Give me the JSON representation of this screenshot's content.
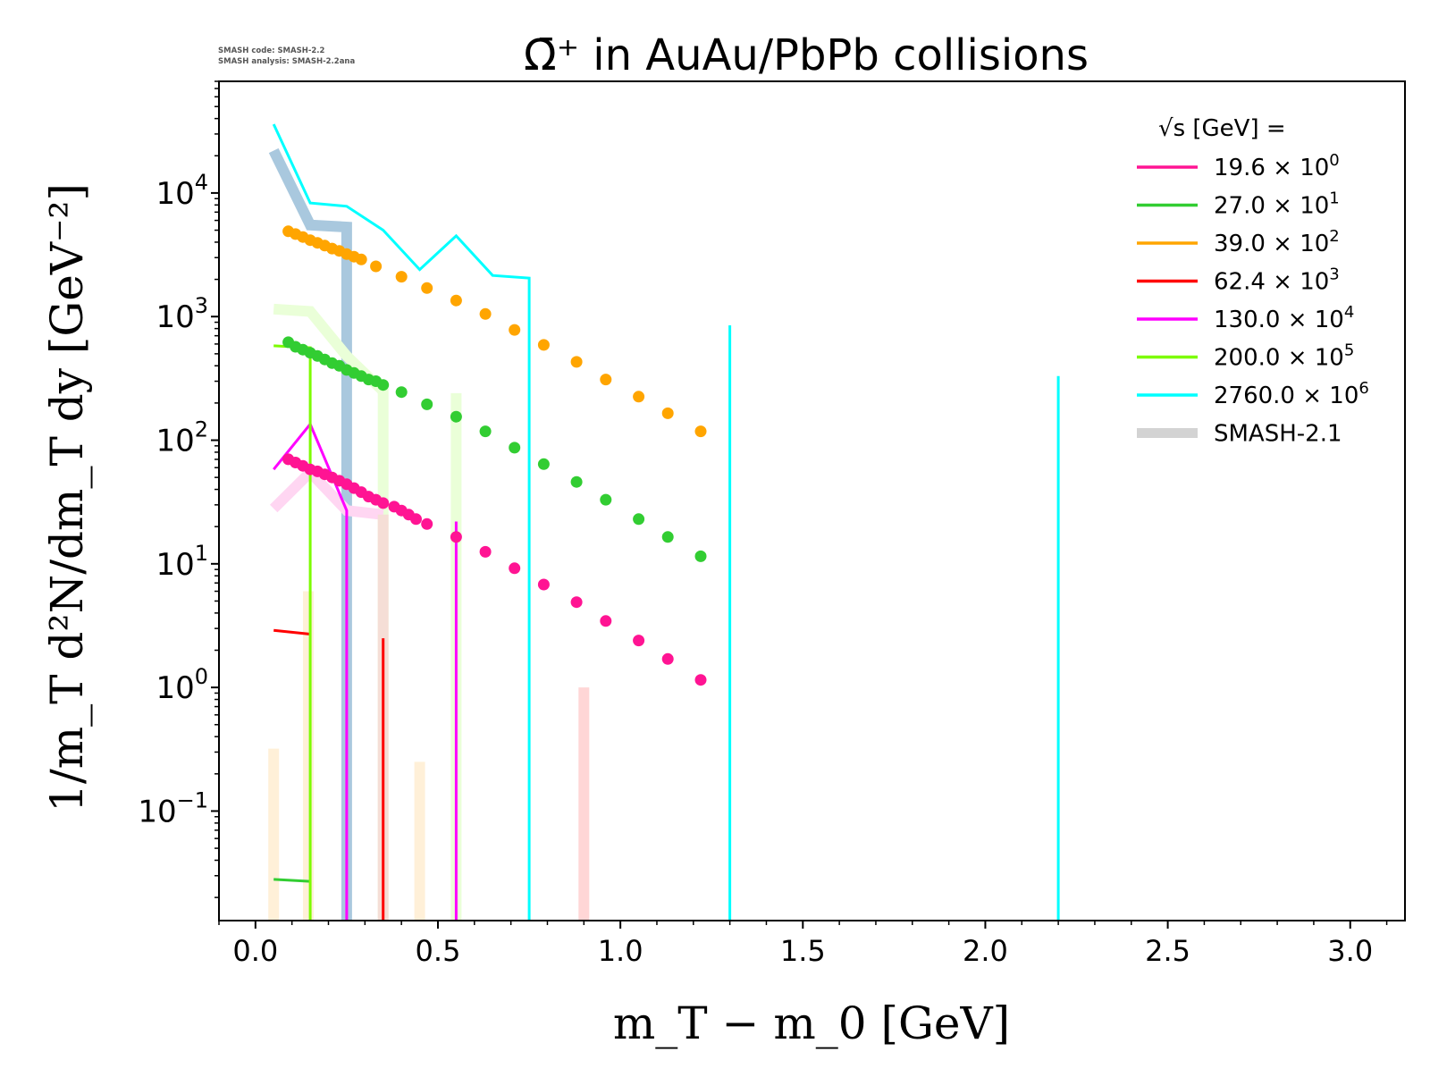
{
  "stamp": {
    "line1": "SMASH code:      SMASH-2.2",
    "line2": "SMASH analysis: SMASH-2.2ana"
  },
  "chart_data": {
    "type": "line",
    "title": "Ω̄⁺ in AuAu/PbPb collisions",
    "xlabel": "m_T − m_0 [GeV]",
    "ylabel": "1/m_T d²N/dm_T dy [GeV⁻²]",
    "xlim": [
      -0.1,
      3.15
    ],
    "ylim": [
      0.013,
      80000
    ],
    "yscale": "log",
    "grid": false,
    "legend_placement": "top-right",
    "legend_title": "√s  [GeV] =",
    "x_ticks": [
      "0.0",
      "0.5",
      "1.0",
      "1.5",
      "2.0",
      "2.5",
      "3.0"
    ],
    "y_ticks": [
      {
        "value": 0.1,
        "base": "10",
        "exp": "−1"
      },
      {
        "value": 1,
        "base": "10",
        "exp": "0"
      },
      {
        "value": 10,
        "base": "10",
        "exp": "1"
      },
      {
        "value": 100,
        "base": "10",
        "exp": "2"
      },
      {
        "value": 1000,
        "base": "10",
        "exp": "3"
      },
      {
        "value": 10000,
        "base": "10",
        "exp": "4"
      }
    ],
    "series": [
      {
        "name": "19.6 × 10⁰",
        "legend_base": "19.6 × 10",
        "legend_exp": "0",
        "color": "#ff1493",
        "points": {
          "x": [
            0.09,
            0.11,
            0.13,
            0.15,
            0.17,
            0.19,
            0.21,
            0.23,
            0.25,
            0.27,
            0.29,
            0.31,
            0.33,
            0.35,
            0.38,
            0.4,
            0.42,
            0.44,
            0.47,
            0.55,
            0.63,
            0.71,
            0.79,
            0.88,
            0.96,
            1.05,
            1.13,
            1.22
          ],
          "y": [
            70,
            66,
            62,
            58,
            56,
            53,
            50,
            47,
            44,
            41,
            38,
            35,
            33,
            31,
            29,
            27,
            25,
            23,
            21,
            16.5,
            12.5,
            9.2,
            6.8,
            4.9,
            3.45,
            2.4,
            1.7,
            1.15
          ]
        },
        "lines": []
      },
      {
        "name": "27.0 × 10¹",
        "legend_base": "27.0 × 10",
        "legend_exp": "1",
        "color": "#32cd32",
        "points": {
          "x": [
            0.09,
            0.11,
            0.13,
            0.15,
            0.17,
            0.19,
            0.21,
            0.23,
            0.25,
            0.27,
            0.29,
            0.31,
            0.33,
            0.35,
            0.4,
            0.47,
            0.55,
            0.63,
            0.71,
            0.79,
            0.88,
            0.96,
            1.05,
            1.13,
            1.22
          ],
          "y": [
            620,
            570,
            540,
            510,
            480,
            450,
            420,
            400,
            370,
            350,
            330,
            310,
            300,
            280,
            245,
            195,
            155,
            118,
            87,
            64,
            46,
            33,
            23,
            16.5,
            11.5
          ]
        },
        "lines": [
          {
            "x": [
              0.05,
              0.15
            ],
            "y": [
              0.028,
              0.027
            ]
          }
        ]
      },
      {
        "name": "39.0 × 10²",
        "legend_base": "39.0 × 10",
        "legend_exp": "2",
        "color": "#ffa500",
        "points": {
          "x": [
            0.09,
            0.11,
            0.13,
            0.15,
            0.17,
            0.19,
            0.21,
            0.23,
            0.25,
            0.27,
            0.29,
            0.33,
            0.4,
            0.47,
            0.55,
            0.63,
            0.71,
            0.79,
            0.88,
            0.96,
            1.05,
            1.13,
            1.22
          ],
          "y": [
            4900,
            4650,
            4400,
            4150,
            3950,
            3750,
            3550,
            3400,
            3200,
            3050,
            2900,
            2550,
            2100,
            1700,
            1350,
            1050,
            780,
            590,
            430,
            310,
            225,
            165,
            118
          ]
        },
        "lines": []
      },
      {
        "name": "62.4 × 10³",
        "legend_base": "62.4 × 10",
        "legend_exp": "3",
        "color": "#ff0000",
        "points": {
          "x": [],
          "y": []
        },
        "lines": [
          {
            "x": [
              0.05,
              0.15
            ],
            "y": [
              2.9,
              2.7
            ]
          },
          {
            "x": [
              0.35,
              0.35
            ],
            "y": [
              2.5,
              0.013
            ]
          }
        ]
      },
      {
        "name": "130.0 × 10⁴",
        "legend_base": "130.0 × 10",
        "legend_exp": "4",
        "color": "#ff00ff",
        "points": {
          "x": [],
          "y": []
        },
        "lines": [
          {
            "x": [
              0.05,
              0.15,
              0.25,
              0.25
            ],
            "y": [
              58,
              135,
              27,
              0.013
            ]
          },
          {
            "x": [
              0.55,
              0.55
            ],
            "y": [
              22,
              0.013
            ]
          }
        ]
      },
      {
        "name": "200.0 × 10⁵",
        "legend_base": "200.0 × 10",
        "legend_exp": "5",
        "color": "#7cfc00",
        "points": {
          "x": [],
          "y": []
        },
        "lines": [
          {
            "x": [
              0.05,
              0.15,
              0.15
            ],
            "y": [
              580,
              560,
              0.013
            ]
          }
        ]
      },
      {
        "name": "2760.0 × 10⁶",
        "legend_base": "2760.0 × 10",
        "legend_exp": "6",
        "color": "#00ffff",
        "points": {
          "x": [],
          "y": []
        },
        "lines": [
          {
            "x": [
              0.05,
              0.15,
              0.25,
              0.35,
              0.45,
              0.55,
              0.65,
              0.75,
              0.75
            ],
            "y": [
              36000,
              8300,
              7800,
              5000,
              2400,
              4500,
              2150,
              2050,
              0.013
            ]
          },
          {
            "x": [
              1.3,
              1.3
            ],
            "y": [
              850,
              0.013
            ]
          },
          {
            "x": [
              2.2,
              2.2
            ],
            "y": [
              330,
              0.013
            ]
          }
        ]
      },
      {
        "name": "SMASH-2.1",
        "legend_base": "SMASH-2.1",
        "legend_exp": "",
        "color": "#d3d3d3",
        "reference": true,
        "points": {
          "x": [],
          "y": []
        },
        "lines": [
          {
            "color": "#a9c8de",
            "x": [
              0.05,
              0.15,
              0.25,
              0.25
            ],
            "y": [
              22000,
              5500,
              5300,
              0.013
            ]
          },
          {
            "color": "#eaffd8",
            "x": [
              0.05,
              0.15,
              0.25,
              0.35,
              0.35
            ],
            "y": [
              1150,
              1100,
              480,
              250,
              0.013
            ]
          },
          {
            "color": "#eaffd8",
            "x": [
              0.55,
              0.55
            ],
            "y": [
              240,
              0.013
            ]
          },
          {
            "color": "#ffd6f2",
            "x": [
              0.05,
              0.15,
              0.25,
              0.35
            ],
            "y": [
              28,
              55,
              27,
              25
            ]
          },
          {
            "color": "#f5ded6",
            "x": [
              0.35,
              0.35
            ],
            "y": [
              25,
              0.013
            ]
          },
          {
            "color": "#ffd6d6",
            "x": [
              0.9,
              0.9
            ],
            "y": [
              1.0,
              0.013
            ]
          },
          {
            "color": "#fff0d8",
            "x": [
              0.05,
              0.05
            ],
            "y": [
              0.32,
              0.013
            ]
          },
          {
            "color": "#fff0d8",
            "x": [
              0.45,
              0.45
            ],
            "y": [
              0.25,
              0.013
            ]
          },
          {
            "color": "#fff0d8",
            "x": [
              0.145,
              0.145
            ],
            "y": [
              6.0,
              0.013
            ]
          }
        ]
      }
    ]
  }
}
